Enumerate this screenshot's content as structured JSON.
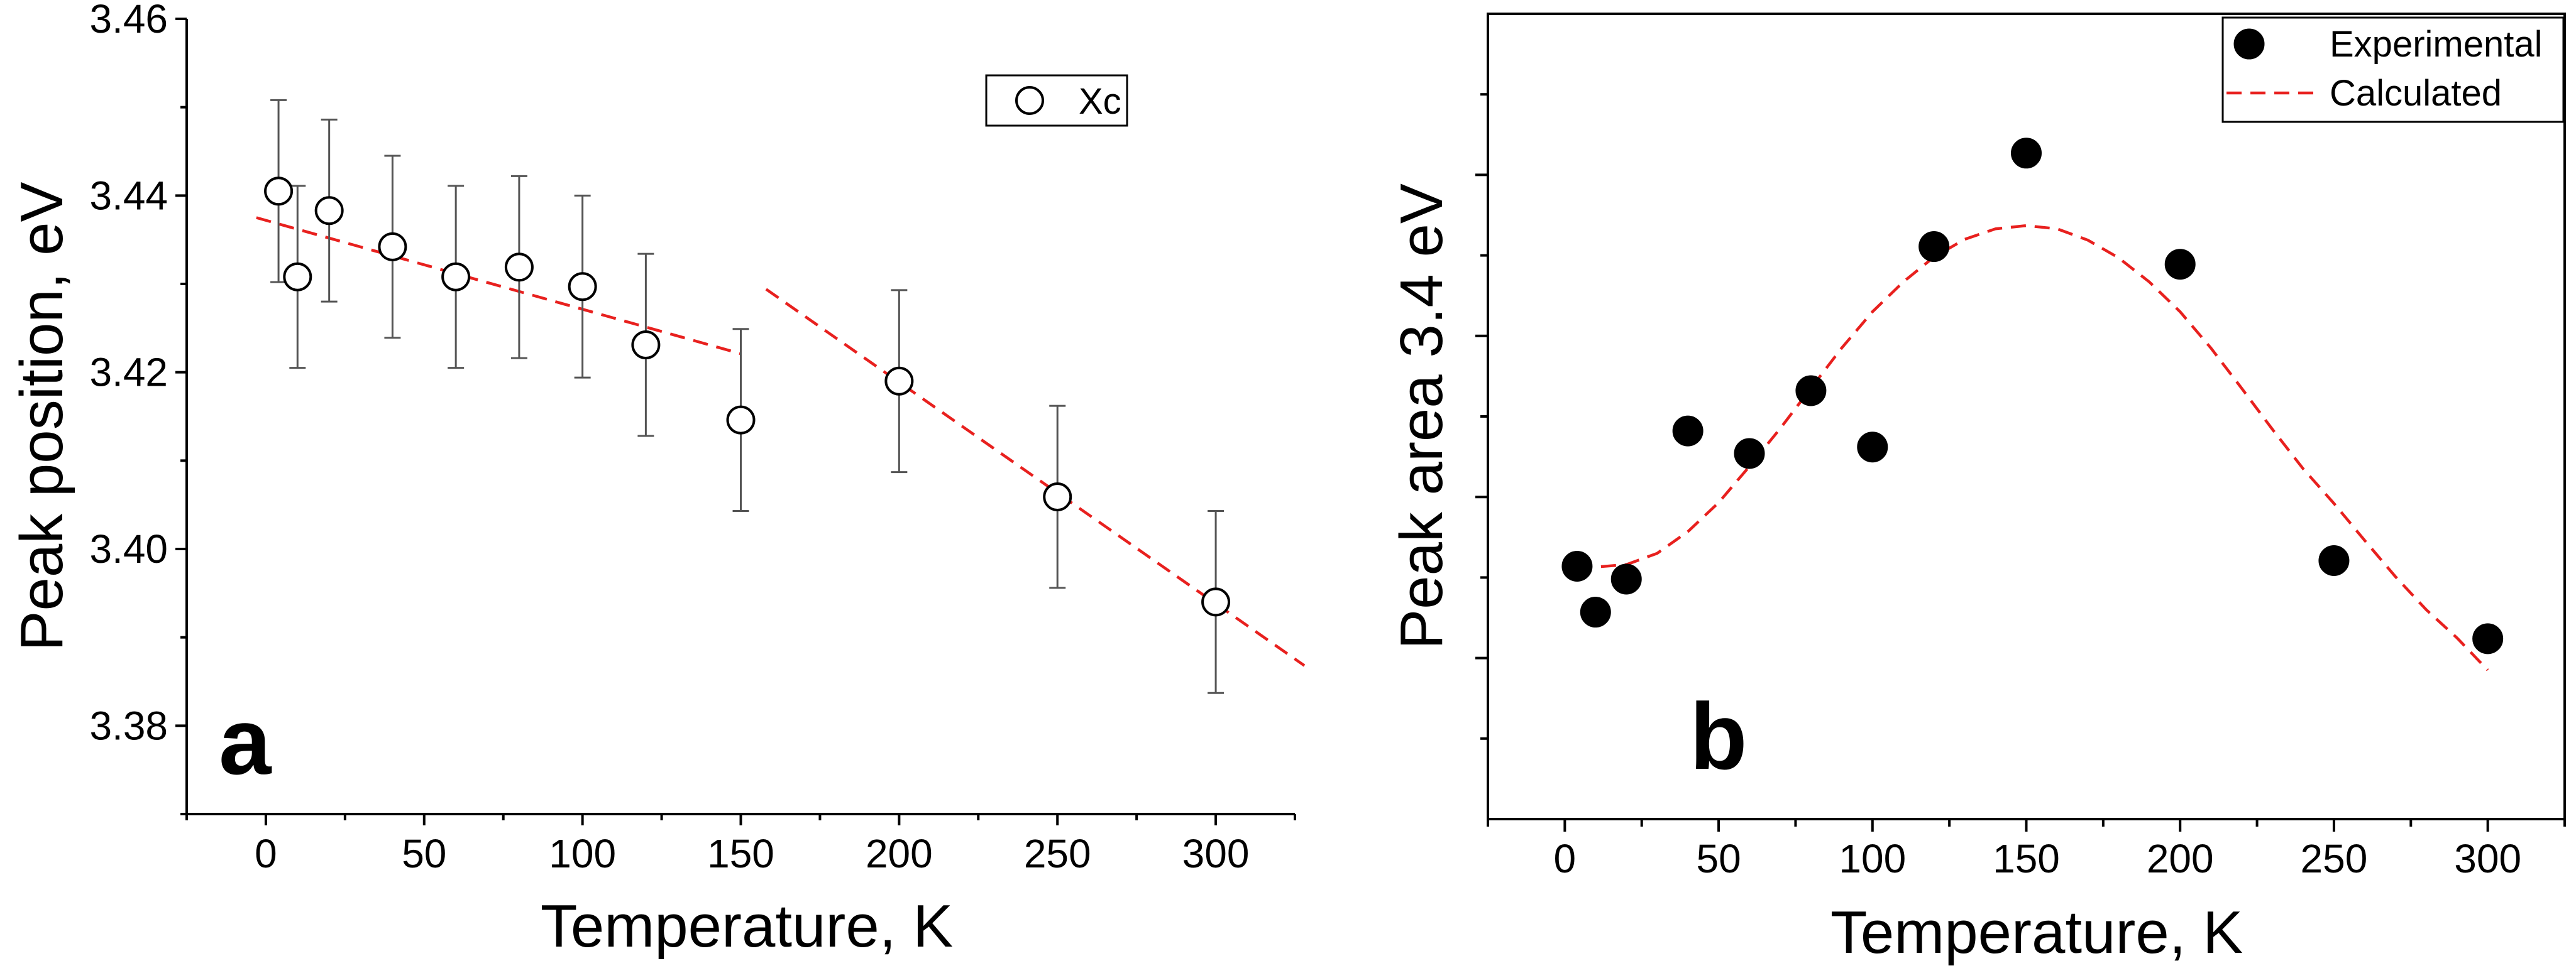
{
  "chart_data": [
    {
      "panel": "a",
      "type": "scatter",
      "title": "",
      "xlabel": "Temperature, K",
      "ylabel": "Peak position, eV",
      "xlim": [
        -25,
        325
      ],
      "ylim": [
        3.37,
        3.46
      ],
      "xticks": [
        0,
        50,
        100,
        150,
        200,
        250,
        300
      ],
      "yticks": [
        3.38,
        3.4,
        3.42,
        3.44,
        3.46
      ],
      "xtick_labels": [
        "0",
        "50",
        "100",
        "150",
        "200",
        "250",
        "300"
      ],
      "ytick_labels": [
        "3.38",
        "3.40",
        "3.42",
        "3.44",
        "3.46"
      ],
      "legend": {
        "location": "top-right",
        "entries": [
          "Xc"
        ]
      },
      "series": [
        {
          "name": "Xc",
          "marker": "open-circle",
          "x": [
            4,
            10,
            20,
            40,
            60,
            80,
            100,
            120,
            150,
            200,
            250,
            300
          ],
          "y": [
            3.4405,
            3.4308,
            3.4383,
            3.4342,
            3.4308,
            3.4319,
            3.4297,
            3.4231,
            3.4146,
            3.419,
            3.4059,
            3.394
          ],
          "error": [
            0.0103,
            0.0103,
            0.0103,
            0.0103,
            0.0103,
            0.0103,
            0.0103,
            0.0103,
            0.0103,
            0.0103,
            0.0103,
            0.0103
          ]
        }
      ],
      "fit_lines": [
        {
          "name": "low-T fit",
          "style": "dashed",
          "color": "#e8201e",
          "x": [
            -3,
            150
          ],
          "y": [
            3.4375,
            3.4221
          ]
        },
        {
          "name": "high-T fit",
          "style": "dashed",
          "color": "#e8201e",
          "x": [
            158,
            328
          ],
          "y": [
            3.4294,
            3.3868
          ]
        }
      ],
      "annotation": "a"
    },
    {
      "panel": "b",
      "type": "scatter",
      "title": "",
      "xlabel": "Temperature, K",
      "ylabel": "Peak area 3.4 eV",
      "xlim": [
        -25,
        325
      ],
      "ylim": [
        0,
        10
      ],
      "xticks": [
        0,
        50,
        100,
        150,
        200,
        250,
        300
      ],
      "xtick_labels": [
        "0",
        "50",
        "100",
        "150",
        "200",
        "250",
        "300"
      ],
      "yticks_major": [
        2,
        4,
        6,
        8
      ],
      "yticks_minor": [
        1,
        3,
        5,
        7,
        9
      ],
      "ytick_labels_shown": false,
      "legend": {
        "location": "top-right",
        "entries": [
          "Experimental",
          "Calculated"
        ]
      },
      "series": [
        {
          "name": "Experimental",
          "marker": "filled-circle",
          "x": [
            4,
            10,
            20,
            40,
            60,
            80,
            100,
            120,
            150,
            200,
            250,
            300
          ],
          "y": [
            3.14,
            2.57,
            2.98,
            4.82,
            4.54,
            5.32,
            4.62,
            7.11,
            8.27,
            6.89,
            3.21,
            2.24
          ]
        },
        {
          "name": "Calculated",
          "style": "dashed",
          "color": "#e8201e",
          "x": [
            4,
            10,
            20,
            30,
            40,
            50,
            60,
            70,
            80,
            90,
            100,
            110,
            120,
            130,
            140,
            150,
            160,
            170,
            180,
            190,
            200,
            210,
            220,
            230,
            240,
            250,
            260,
            270,
            280,
            290,
            300
          ],
          "y": [
            3.13,
            3.13,
            3.16,
            3.3,
            3.57,
            3.93,
            4.38,
            4.85,
            5.35,
            5.85,
            6.3,
            6.67,
            6.98,
            7.2,
            7.33,
            7.37,
            7.33,
            7.19,
            6.97,
            6.67,
            6.3,
            5.85,
            5.35,
            4.84,
            4.35,
            3.92,
            3.46,
            3.01,
            2.6,
            2.25,
            1.85
          ]
        }
      ],
      "annotation": "b"
    }
  ]
}
